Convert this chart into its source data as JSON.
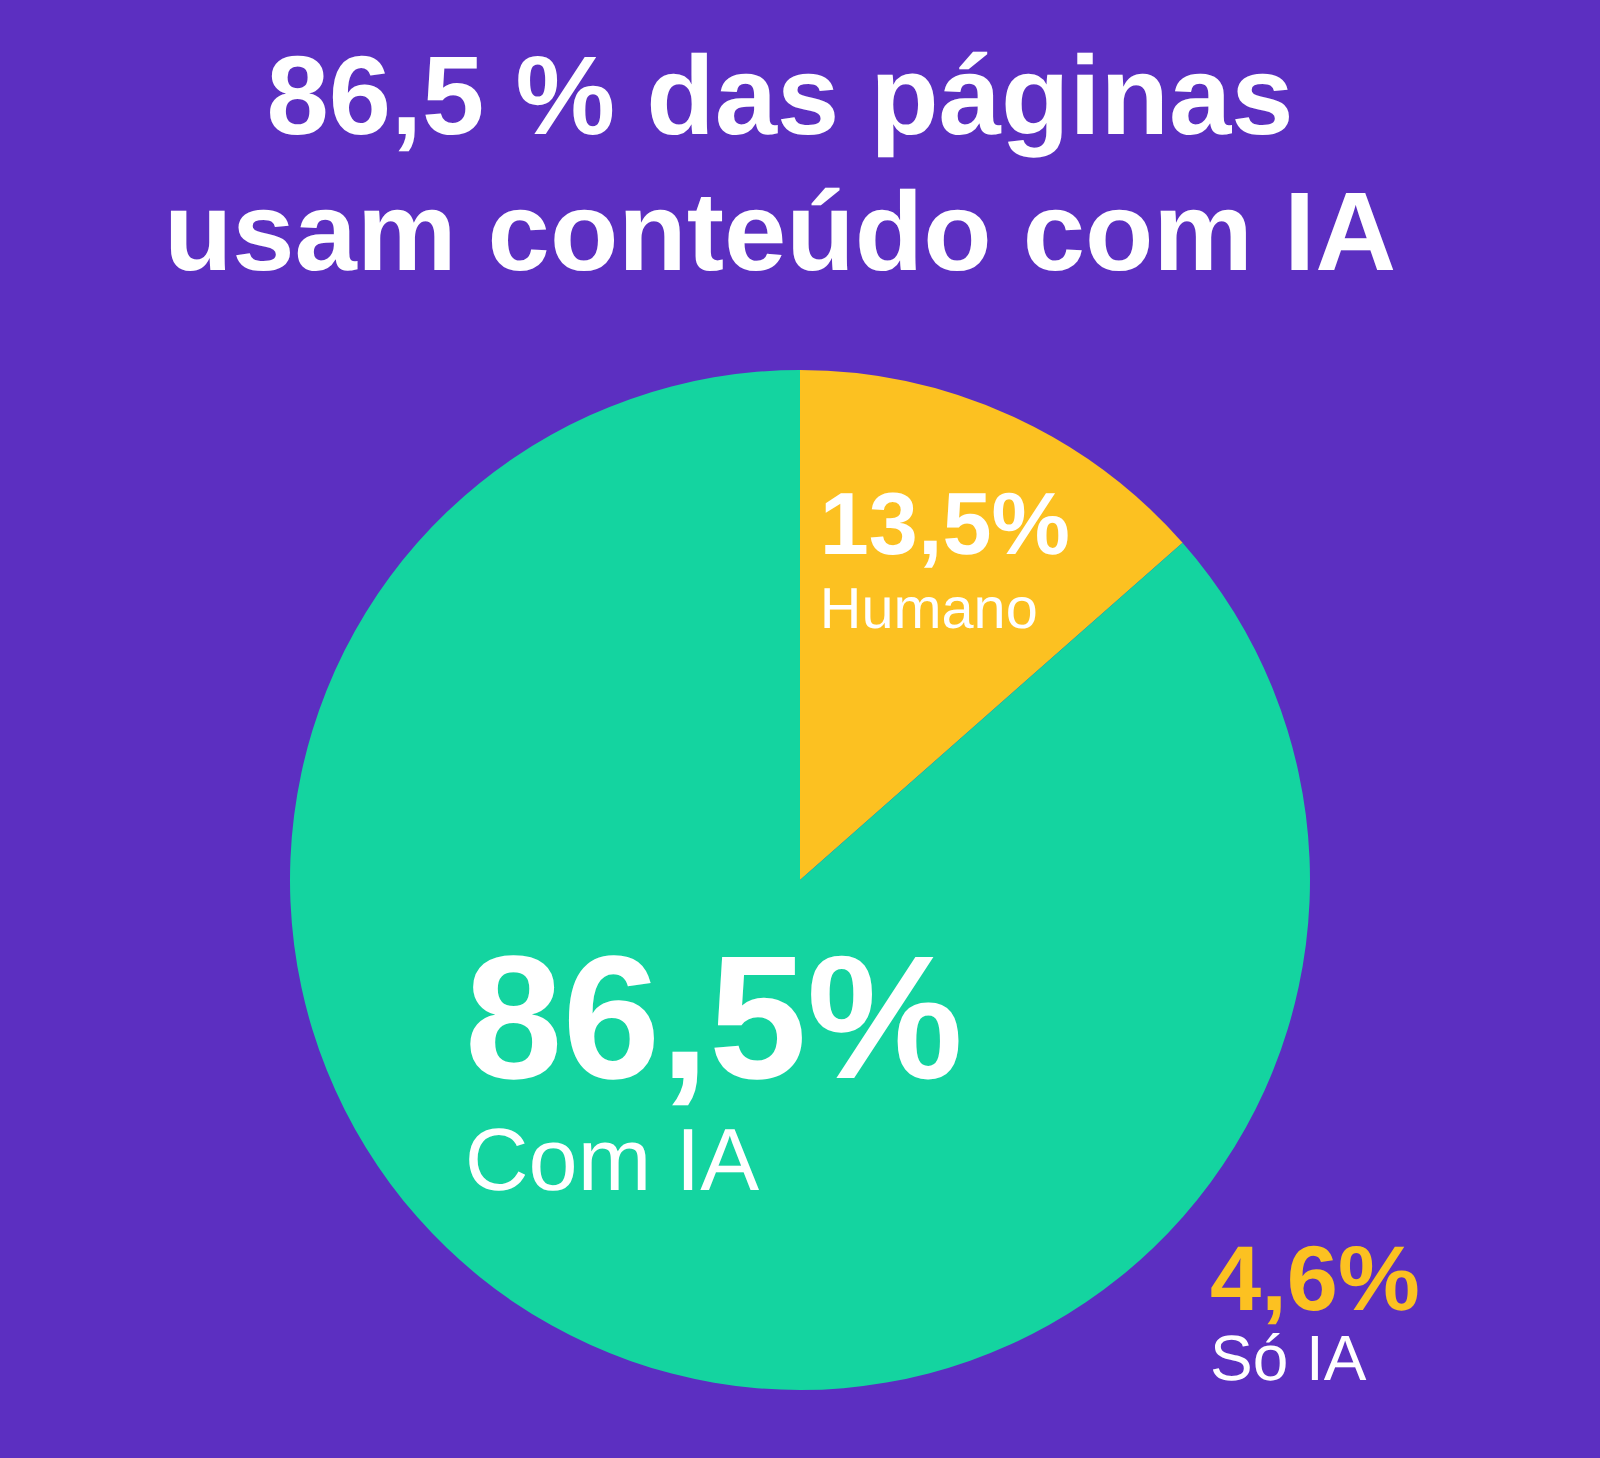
{
  "chart_data": {
    "type": "pie",
    "title": "86,5 % das páginas usam conteúdo com IA",
    "categories": [
      "Humano",
      "Com IA"
    ],
    "values": [
      13.5,
      86.5
    ],
    "colors": [
      "#fcc121",
      "#14d4a0"
    ],
    "value_labels": [
      "13,5%",
      "86,5%"
    ],
    "annotations": [
      "4,6%",
      "Só IA"
    ]
  }
}
